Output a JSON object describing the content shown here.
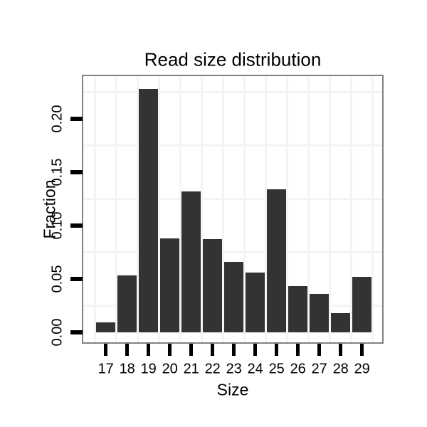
{
  "chart_data": {
    "type": "bar",
    "title": "Read size distribution",
    "xlabel": "Size",
    "ylabel": "Fraction",
    "categories": [
      "17",
      "18",
      "19",
      "20",
      "21",
      "22",
      "23",
      "24",
      "25",
      "26",
      "27",
      "28",
      "29"
    ],
    "values": [
      0.009,
      0.053,
      0.228,
      0.088,
      0.132,
      0.087,
      0.066,
      0.056,
      0.134,
      0.043,
      0.036,
      0.018,
      0.052
    ],
    "ytick_values": [
      0.0,
      0.05,
      0.1,
      0.15,
      0.2
    ],
    "ytick_labels": [
      "0.00",
      "0.05",
      "0.10",
      "0.15",
      "0.20"
    ],
    "ylim": [
      -0.0097,
      0.2397
    ],
    "grid": {
      "horizontal_line_values": [
        0.025,
        0.075,
        0.125,
        0.175,
        0.225
      ],
      "vertical_lines_at_category_boundaries": true,
      "legend": "none"
    },
    "colors": {
      "bar_fill": "#333333",
      "panel_border": "#828282",
      "gridline": "#f4f4f4",
      "text": "#000000",
      "tick": "#000000",
      "background": "#ffffff"
    }
  }
}
